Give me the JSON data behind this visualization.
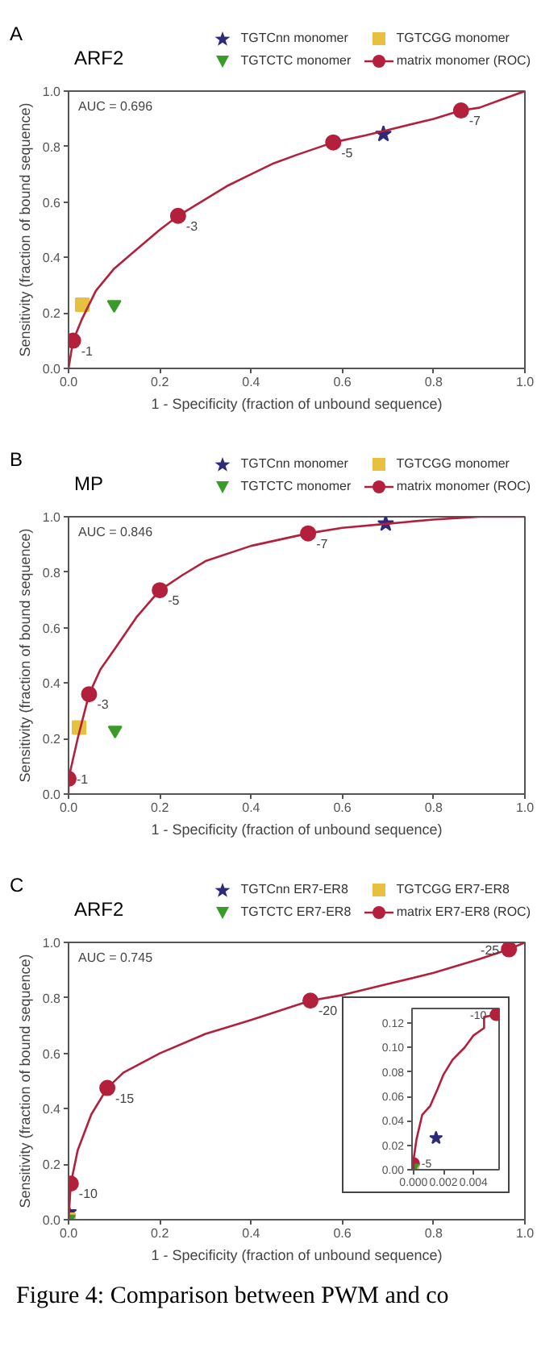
{
  "chart_data": [
    {
      "type": "line",
      "title": "A",
      "subtitle": "ARF2",
      "xlabel": "1 - Specificity (fraction of unbound sequence)",
      "ylabel": "Sensitivity (fraction of bound sequence)",
      "xlim": [
        0,
        1
      ],
      "ylim": [
        0,
        1
      ],
      "xticks": [
        {
          "value": 0,
          "label": "0.0"
        },
        {
          "value": 0.2,
          "label": "0.2"
        },
        {
          "value": 0.4,
          "label": "0.4"
        },
        {
          "value": 0.6,
          "label": "0.6"
        },
        {
          "value": 0.8,
          "label": "0.8"
        },
        {
          "value": 1,
          "label": "1.0"
        }
      ],
      "yticks": [
        {
          "value": 0,
          "label": "0.0"
        },
        {
          "value": 0.2,
          "label": "0.2"
        },
        {
          "value": 0.4,
          "label": "0.4"
        },
        {
          "value": 0.6,
          "label": "0.6"
        },
        {
          "value": 0.8,
          "label": "0.8"
        },
        {
          "value": 1,
          "label": "1.0"
        }
      ],
      "legend": "top",
      "grid": false,
      "series": [
        {
          "name": "TGTCnn monomer",
          "type": "scatter",
          "marker": "star",
          "color": "#2e2a7a",
          "x": [
            0.69
          ],
          "values": [
            0.845
          ]
        },
        {
          "name": "TGTCGG monomer",
          "type": "scatter",
          "marker": "square",
          "color": "#e6c040",
          "x": [
            0.03
          ],
          "values": [
            0.23
          ]
        },
        {
          "name": "TGTCTC monomer",
          "type": "scatter",
          "marker": "triangle",
          "color": "#3a9a2a",
          "x": [
            0.1
          ],
          "values": [
            0.23
          ]
        },
        {
          "name": "matrix monomer (ROC)",
          "color": "#b3203c",
          "x": [
            0,
            0.005,
            0.01,
            0.03,
            0.06,
            0.1,
            0.15,
            0.2,
            0.24,
            0.3,
            0.35,
            0.4,
            0.45,
            0.5,
            0.58,
            0.65,
            0.7,
            0.8,
            0.86,
            0.9,
            0.95,
            1
          ],
          "values": [
            0,
            0.05,
            0.1,
            0.18,
            0.28,
            0.36,
            0.43,
            0.5,
            0.55,
            0.61,
            0.66,
            0.7,
            0.74,
            0.77,
            0.815,
            0.84,
            0.86,
            0.9,
            0.93,
            0.94,
            0.97,
            1
          ]
        },
        {
          "type": "scatter",
          "marker": "circle",
          "color": "#b3203c",
          "x": [
            0.01,
            0.24,
            0.58,
            0.86
          ],
          "values": [
            0.1,
            0.55,
            0.815,
            0.93
          ]
        }
      ],
      "annotations": [
        "AUC = 0.696",
        {
          "text": "-1",
          "x": 0.01,
          "y": 0.1
        },
        {
          "text": "-3",
          "x": 0.24,
          "y": 0.55
        },
        {
          "text": "-5",
          "x": 0.58,
          "y": 0.815
        },
        {
          "text": "-7",
          "x": 0.86,
          "y": 0.93
        }
      ]
    },
    {
      "type": "line",
      "title": "B",
      "subtitle": "MP",
      "xlabel": "1 - Specificity (fraction of unbound sequence)",
      "ylabel": "Sensitivity (fraction of bound sequence)",
      "xlim": [
        0,
        1
      ],
      "ylim": [
        0,
        1
      ],
      "xticks": [
        {
          "value": 0,
          "label": "0.0"
        },
        {
          "value": 0.2,
          "label": "0.2"
        },
        {
          "value": 0.4,
          "label": "0.4"
        },
        {
          "value": 0.6,
          "label": "0.6"
        },
        {
          "value": 0.8,
          "label": "0.8"
        },
        {
          "value": 1,
          "label": "1.0"
        }
      ],
      "yticks": [
        {
          "value": 0,
          "label": "0.0"
        },
        {
          "value": 0.2,
          "label": "0.2"
        },
        {
          "value": 0.4,
          "label": "0.4"
        },
        {
          "value": 0.6,
          "label": "0.6"
        },
        {
          "value": 0.8,
          "label": "0.8"
        },
        {
          "value": 1,
          "label": "1.0"
        }
      ],
      "legend": "top",
      "grid": false,
      "series": [
        {
          "name": "TGTCnn monomer",
          "type": "scatter",
          "marker": "star",
          "color": "#2e2a7a",
          "x": [
            0.695
          ],
          "values": [
            0.975
          ]
        },
        {
          "name": "TGTCGG monomer",
          "type": "scatter",
          "marker": "square",
          "color": "#e6c040",
          "x": [
            0.023
          ],
          "values": [
            0.24
          ]
        },
        {
          "name": "TGTCTC monomer",
          "type": "scatter",
          "marker": "triangle",
          "color": "#3a9a2a",
          "x": [
            0.102
          ],
          "values": [
            0.23
          ]
        },
        {
          "name": "matrix monomer (ROC)",
          "color": "#b3203c",
          "x": [
            0,
            0,
            0.02,
            0.045,
            0.07,
            0.1,
            0.15,
            0.2,
            0.25,
            0.3,
            0.4,
            0.525,
            0.6,
            0.7,
            0.8,
            0.9,
            1
          ],
          "values": [
            0,
            0.055,
            0.2,
            0.36,
            0.45,
            0.52,
            0.64,
            0.735,
            0.79,
            0.84,
            0.895,
            0.94,
            0.96,
            0.975,
            0.99,
            1,
            1
          ]
        },
        {
          "type": "scatter",
          "marker": "circle",
          "color": "#b3203c",
          "x": [
            0,
            0.045,
            0.2,
            0.525
          ],
          "values": [
            0.055,
            0.36,
            0.735,
            0.94
          ]
        }
      ],
      "annotations": [
        "AUC = 0.846",
        {
          "text": "-1",
          "x": 0,
          "y": 0.055
        },
        {
          "text": "-3",
          "x": 0.045,
          "y": 0.36
        },
        {
          "text": "-5",
          "x": 0.2,
          "y": 0.735
        },
        {
          "text": "-7",
          "x": 0.525,
          "y": 0.94
        }
      ]
    },
    {
      "type": "line",
      "title": "C",
      "subtitle": "ARF2",
      "xlabel": "1 - Specificity (fraction of unbound sequence)",
      "ylabel": "Sensitivity (fraction of bound sequence)",
      "xlim": [
        0,
        1
      ],
      "ylim": [
        0,
        1
      ],
      "xticks": [
        {
          "value": 0,
          "label": "0.0"
        },
        {
          "value": 0.2,
          "label": "0.2"
        },
        {
          "value": 0.4,
          "label": "0.4"
        },
        {
          "value": 0.6,
          "label": "0.6"
        },
        {
          "value": 0.8,
          "label": "0.8"
        },
        {
          "value": 1,
          "label": "1.0"
        }
      ],
      "yticks": [
        {
          "value": 0,
          "label": "0.0"
        },
        {
          "value": 0.2,
          "label": "0.2"
        },
        {
          "value": 0.4,
          "label": "0.4"
        },
        {
          "value": 0.6,
          "label": "0.6"
        },
        {
          "value": 0.8,
          "label": "0.8"
        },
        {
          "value": 1,
          "label": "1.0"
        }
      ],
      "legend": "top",
      "grid": false,
      "series": [
        {
          "name": "TGTCnn ER7-ER8",
          "type": "scatter",
          "marker": "star",
          "color": "#2e2a7a",
          "x": [
            0
          ],
          "values": [
            0.026
          ]
        },
        {
          "name": "TGTCGG ER7-ER8",
          "type": "scatter",
          "marker": "square",
          "color": "#e6c040",
          "x": [
            0
          ],
          "values": [
            0
          ]
        },
        {
          "name": "TGTCTC ER7-ER8",
          "type": "scatter",
          "marker": "triangle",
          "color": "#3a9a2a",
          "x": [
            0
          ],
          "values": [
            0.002
          ]
        },
        {
          "name": "matrix ER7-ER8 (ROC)",
          "color": "#b3203c",
          "x": [
            0,
            0.005,
            0.02,
            0.05,
            0.085,
            0.12,
            0.2,
            0.3,
            0.4,
            0.53,
            0.6,
            0.7,
            0.8,
            0.9,
            0.965,
            1
          ],
          "values": [
            0,
            0.13,
            0.25,
            0.38,
            0.475,
            0.53,
            0.6,
            0.67,
            0.72,
            0.79,
            0.81,
            0.85,
            0.89,
            0.94,
            0.975,
            1
          ]
        },
        {
          "type": "scatter",
          "marker": "circle",
          "color": "#b3203c",
          "x": [
            0.005,
            0.085,
            0.53,
            0.965
          ],
          "values": [
            0.13,
            0.475,
            0.79,
            0.975
          ]
        }
      ],
      "annotations": [
        "AUC = 0.745",
        {
          "text": "-10",
          "x": 0.005,
          "y": 0.13
        },
        {
          "text": "-15",
          "x": 0.085,
          "y": 0.475
        },
        {
          "text": "-20",
          "x": 0.53,
          "y": 0.79
        },
        {
          "text": "-25",
          "x": 0.965,
          "y": 0.975
        },
        "Figure 4: Comparison between PWM and co"
      ]
    },
    {
      "type": "line",
      "xlim": [
        -0.0001,
        0.0057
      ],
      "ylim": [
        0,
        0.132
      ],
      "xticks": [
        {
          "value": 0,
          "label": "0.000"
        },
        {
          "value": 0.002,
          "label": "0.002"
        },
        {
          "value": 0.004,
          "label": "0.004"
        }
      ],
      "yticks": [
        {
          "value": 0,
          "label": "0.00"
        },
        {
          "value": 0.02,
          "label": "0.02"
        },
        {
          "value": 0.04,
          "label": "0.04"
        },
        {
          "value": 0.06,
          "label": "0.06"
        },
        {
          "value": 0.08,
          "label": "0.08"
        },
        {
          "value": 0.1,
          "label": "0.10"
        },
        {
          "value": 0.12,
          "label": "0.12"
        }
      ],
      "grid": false,
      "series": [
        {
          "type": "scatter",
          "marker": "circle",
          "color": "#b3203c",
          "x": [
            0,
            0.0055
          ],
          "values": [
            0.005,
            0.127
          ]
        },
        {
          "type": "scatter",
          "marker": "star",
          "color": "#2e2a7a",
          "x": [
            0.0015
          ],
          "values": [
            0.026
          ]
        },
        {
          "type": "scatter",
          "marker": "square",
          "color": "#e6c040",
          "x": [
            0
          ],
          "values": [
            0
          ]
        },
        {
          "type": "scatter",
          "marker": "triangle",
          "color": "#3a9a2a",
          "x": [
            0
          ],
          "values": [
            0.002
          ]
        },
        {
          "color": "#b3203c",
          "x": [
            0,
            0,
            0.0002,
            0.00058,
            0.0011,
            0.0016,
            0.002,
            0.0026,
            0.0034,
            0.004,
            0.0047,
            0.0047,
            0.0055
          ],
          "values": [
            0,
            0.008,
            0.025,
            0.045,
            0.052,
            0.066,
            0.078,
            0.09,
            0.1,
            0.11,
            0.116,
            0.125,
            0.127
          ]
        }
      ],
      "annotations": [
        {
          "text": "-5",
          "x": 0,
          "y": 0.005
        },
        {
          "text": "-10",
          "x": 0.0055,
          "y": 0.127
        }
      ]
    }
  ]
}
